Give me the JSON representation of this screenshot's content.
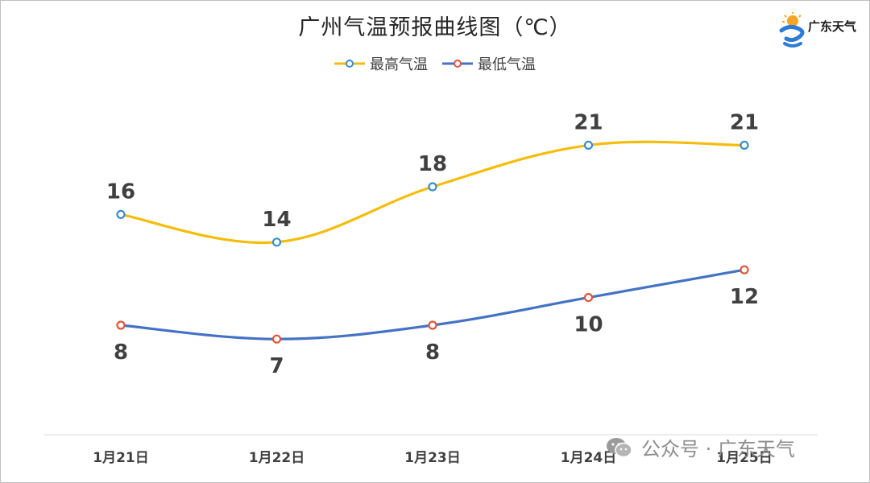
{
  "header": {
    "title": "广州气温预报曲线图（℃）",
    "logo_text": "广东天气"
  },
  "watermark": {
    "text": "公众号 · 广东天气",
    "icon": "wechat-icon"
  },
  "chart_data": {
    "type": "line",
    "title": "广州气温预报曲线图（℃）",
    "categories": [
      "1月21日",
      "1月22日",
      "1月23日",
      "1月24日",
      "1月25日"
    ],
    "series": [
      {
        "name": "最高气温",
        "values": [
          16,
          14,
          18,
          21,
          21
        ],
        "color": "#F5BD0B",
        "marker_color": "#3A8FC7",
        "label_position": "above"
      },
      {
        "name": "最低气温",
        "values": [
          8,
          7,
          8,
          10,
          12
        ],
        "color": "#4472C4",
        "marker_color": "#E0553A",
        "label_position": "below"
      }
    ],
    "xlabel": "",
    "ylabel": "",
    "grid": false,
    "legend": "top-center",
    "smooth": true
  }
}
